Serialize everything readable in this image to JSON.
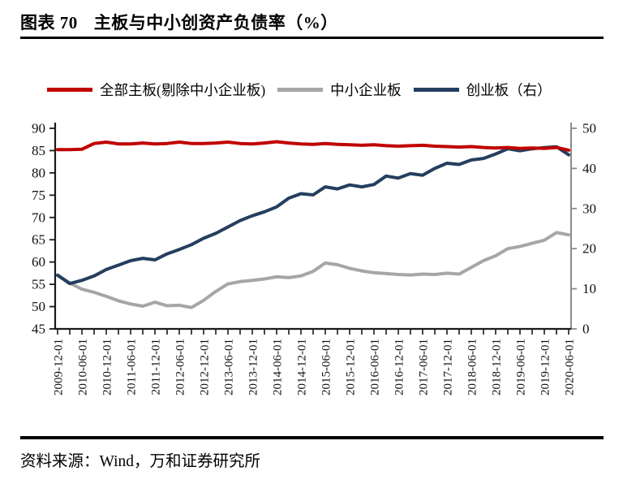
{
  "page": {
    "figure_label": "图表 70",
    "figure_title": "主板与中小创资产负债率（%）",
    "source": "资料来源：Wind，万和证券研究所"
  },
  "chart_data": {
    "type": "line",
    "title": "图表 70 主板与中小创资产负债率（%）",
    "x_frequency": "quarterly",
    "tick_every": 2,
    "x_labels": [
      "2009-12-01",
      "2010-06-01",
      "2010-12-01",
      "2011-06-01",
      "2011-12-01",
      "2012-06-01",
      "2012-12-01",
      "2013-06-01",
      "2013-12-01",
      "2014-06-01",
      "2014-12-01",
      "2015-06-01",
      "2015-12-01",
      "2016-06-01",
      "2016-12-01",
      "2017-06-01",
      "2017-12-01",
      "2018-06-01",
      "2018-12-01",
      "2019-06-01",
      "2019-12-01",
      "2020-06-01"
    ],
    "left_axis": {
      "min": 45,
      "max": 90,
      "step": 5
    },
    "right_axis": {
      "min": 0,
      "max": 50,
      "step": 10
    },
    "legend_position": "top",
    "grid": false,
    "axis_colors": {
      "left_bottom": "#1a1a1a",
      "right": "#8c8c8c"
    },
    "series": [
      {
        "name": "全部主板(剔除中小企业板)",
        "axis": "left",
        "color": "#C00000",
        "values": [
          85.2,
          85.2,
          85.3,
          86.6,
          86.9,
          86.5,
          86.5,
          86.7,
          86.5,
          86.6,
          86.9,
          86.6,
          86.6,
          86.7,
          86.9,
          86.6,
          86.5,
          86.7,
          87.0,
          86.7,
          86.5,
          86.4,
          86.6,
          86.4,
          86.3,
          86.2,
          86.3,
          86.1,
          86.0,
          86.1,
          86.2,
          86.0,
          85.9,
          85.8,
          85.9,
          85.7,
          85.6,
          85.7,
          85.5,
          85.6,
          85.5,
          85.7,
          85.1
        ]
      },
      {
        "name": "中小企业板",
        "axis": "left",
        "color": "#A6A6A6",
        "values": [
          57.0,
          55.3,
          53.9,
          53.2,
          52.3,
          51.3,
          50.6,
          50.1,
          51.0,
          50.2,
          50.3,
          49.8,
          51.4,
          53.4,
          55.1,
          55.6,
          55.9,
          56.2,
          56.7,
          56.5,
          56.9,
          57.9,
          59.8,
          59.4,
          58.6,
          58.0,
          57.6,
          57.4,
          57.2,
          57.1,
          57.3,
          57.2,
          57.5,
          57.3,
          58.8,
          60.3,
          61.4,
          63.0,
          63.5,
          64.2,
          64.9,
          66.6,
          66.1
        ]
      },
      {
        "name": "创业板（右）",
        "axis": "right",
        "color": "#253E5F",
        "values": [
          13.4,
          11.3,
          12.1,
          13.2,
          14.8,
          15.9,
          17.0,
          17.6,
          17.2,
          18.7,
          19.8,
          21.0,
          22.6,
          23.8,
          25.4,
          27.0,
          28.2,
          29.2,
          30.4,
          32.6,
          33.7,
          33.4,
          35.4,
          34.9,
          35.9,
          35.4,
          36.0,
          38.1,
          37.6,
          38.7,
          38.3,
          40.0,
          41.3,
          41.0,
          42.1,
          42.5,
          43.6,
          44.9,
          44.4,
          44.9,
          45.2,
          45.4,
          43.4
        ]
      }
    ]
  }
}
